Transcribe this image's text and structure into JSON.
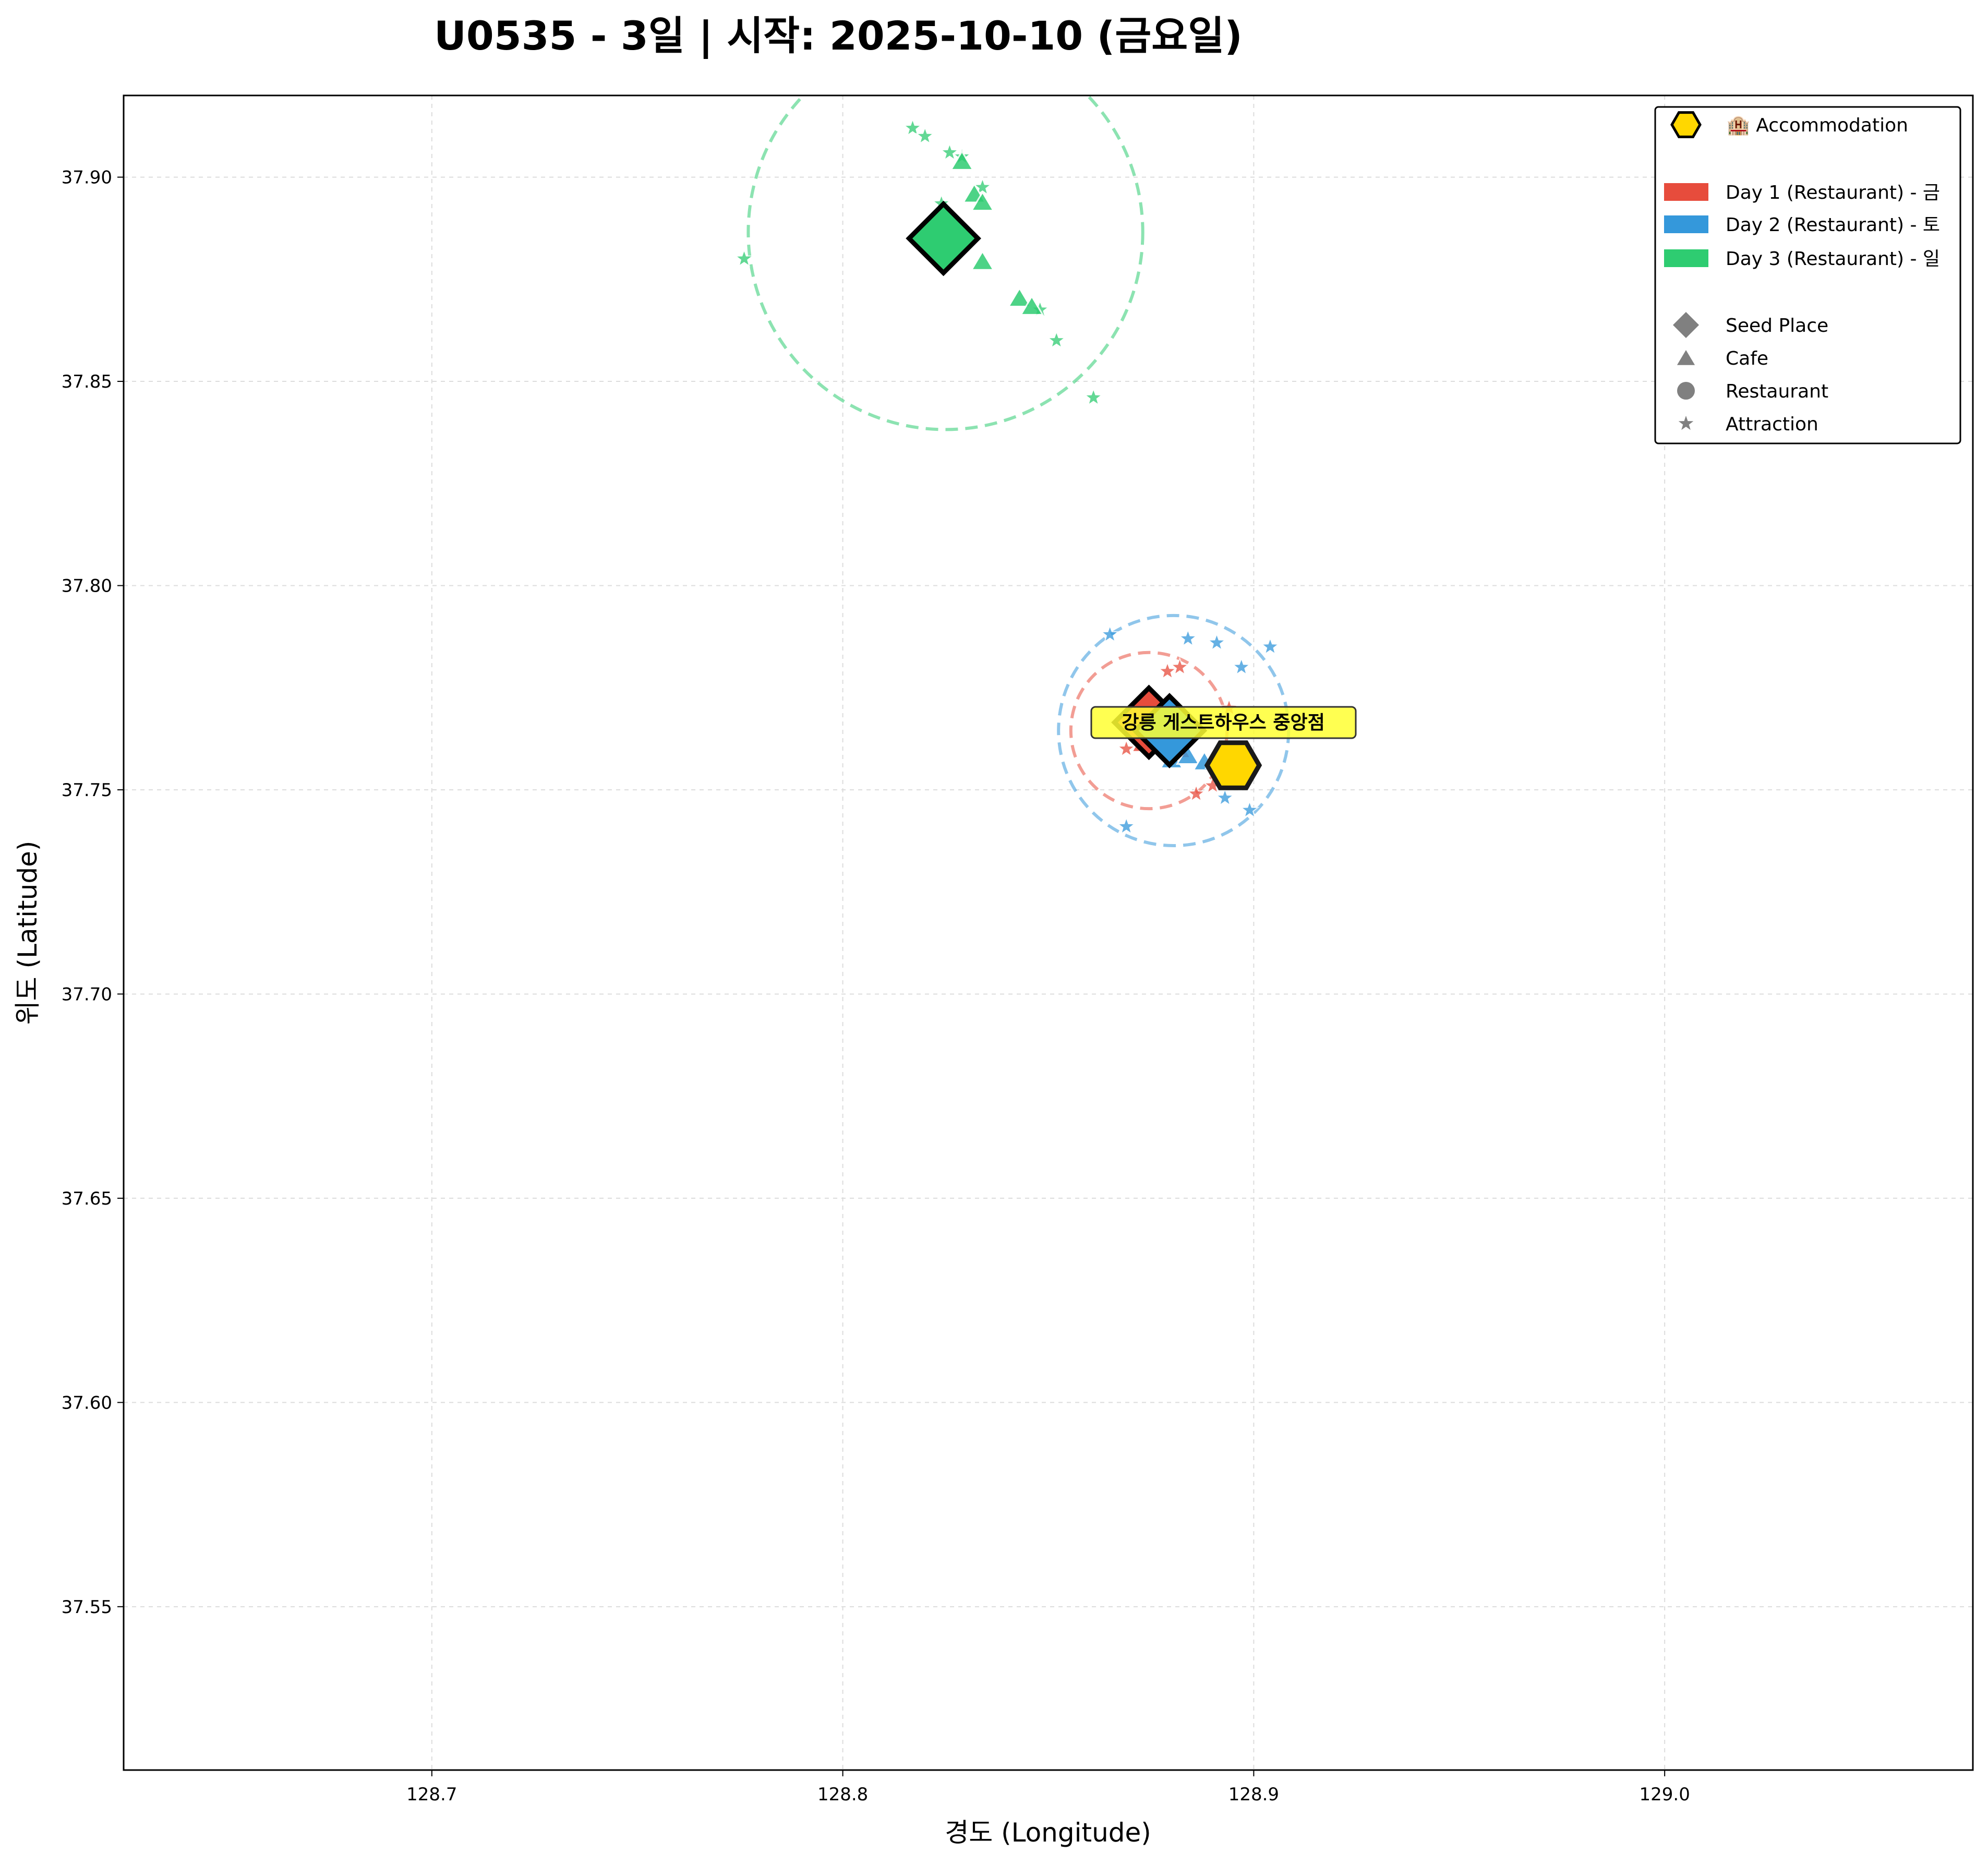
{
  "chart_data": {
    "type": "scatter",
    "title": "U0535 - 3일 | 시작: 2025-10-10 (금요일)",
    "xlabel": "경도 (Longitude)",
    "ylabel": "위도 (Latitude)",
    "xlim": [
      128.625,
      129.075
    ],
    "ylim": [
      37.51,
      37.92
    ],
    "xticks": [
      128.7,
      128.8,
      128.9,
      129.0
    ],
    "xtick_labels": [
      "128.7",
      "128.8",
      "128.9",
      "129.0"
    ],
    "yticks": [
      37.55,
      37.6,
      37.65,
      37.7,
      37.75,
      37.8,
      37.85,
      37.9
    ],
    "ytick_labels": [
      "37.55",
      "37.60",
      "37.65",
      "37.70",
      "37.75",
      "37.80",
      "37.85",
      "37.90"
    ],
    "grid": true,
    "legend_position": "top-right",
    "legend": [
      {
        "kind": "hexagon",
        "label": "🏨 Accommodation",
        "color": "#FFD700"
      },
      {
        "kind": "patch",
        "label": "Day 1 (Restaurant) - 금",
        "color": "#E74C3C"
      },
      {
        "kind": "patch",
        "label": "Day 2 (Restaurant) - 토",
        "color": "#3498DB"
      },
      {
        "kind": "patch",
        "label": "Day 3 (Restaurant) - 일",
        "color": "#2ECC71"
      },
      {
        "kind": "diamond",
        "label": "Seed Place",
        "color": "#808080"
      },
      {
        "kind": "triangle",
        "label": "Cafe",
        "color": "#808080"
      },
      {
        "kind": "circle",
        "label": "Restaurant",
        "color": "#808080"
      },
      {
        "kind": "star",
        "label": "Attraction",
        "color": "#808080"
      }
    ],
    "accommodation": {
      "name": "강릉 게스트하우스 중앙점",
      "lon": 128.895,
      "lat": 37.756,
      "color": "#FFD700"
    },
    "series": [
      {
        "name": "Day 1 (Restaurant) - 금",
        "color": "#E74C3C",
        "seed": {
          "lon": 128.8745,
          "lat": 37.7665
        },
        "radius_circle": {
          "lon": 128.8745,
          "lat": 37.7645,
          "radius": 0.019
        },
        "cafes": [
          {
            "lon": 128.873,
            "lat": 37.761
          },
          {
            "lon": 128.877,
            "lat": 37.762
          },
          {
            "lon": 128.882,
            "lat": 37.7595
          }
        ],
        "attractions": [
          {
            "lon": 128.869,
            "lat": 37.76
          },
          {
            "lon": 128.879,
            "lat": 37.779
          },
          {
            "lon": 128.882,
            "lat": 37.78
          },
          {
            "lon": 128.886,
            "lat": 37.749
          },
          {
            "lon": 128.89,
            "lat": 37.751
          },
          {
            "lon": 128.894,
            "lat": 37.77
          }
        ]
      },
      {
        "name": "Day 2 (Restaurant) - 토",
        "color": "#3498DB",
        "seed": {
          "lon": 128.8795,
          "lat": 37.7645
        },
        "radius_circle": {
          "lon": 128.8805,
          "lat": 37.7645,
          "radius": 0.028
        },
        "cafes": [
          {
            "lon": 128.88,
            "lat": 37.757
          },
          {
            "lon": 128.884,
            "lat": 37.758
          },
          {
            "lon": 128.888,
            "lat": 37.7565
          },
          {
            "lon": 128.891,
            "lat": 37.757
          }
        ],
        "attractions": [
          {
            "lon": 128.865,
            "lat": 37.788
          },
          {
            "lon": 128.884,
            "lat": 37.787
          },
          {
            "lon": 128.891,
            "lat": 37.786
          },
          {
            "lon": 128.897,
            "lat": 37.78
          },
          {
            "lon": 128.904,
            "lat": 37.785
          },
          {
            "lon": 128.869,
            "lat": 37.741
          },
          {
            "lon": 128.893,
            "lat": 37.748
          },
          {
            "lon": 128.899,
            "lat": 37.745
          }
        ]
      },
      {
        "name": "Day 3 (Restaurant) - 일",
        "color": "#2ECC71",
        "seed": {
          "lon": 128.8245,
          "lat": 37.885
        },
        "radius_circle": {
          "lon": 128.825,
          "lat": 37.8865,
          "radius": 0.048
        },
        "cafes": [
          {
            "lon": 128.829,
            "lat": 37.9035
          },
          {
            "lon": 128.832,
            "lat": 37.8955
          },
          {
            "lon": 128.834,
            "lat": 37.8935
          },
          {
            "lon": 128.834,
            "lat": 37.879
          },
          {
            "lon": 128.843,
            "lat": 37.87
          },
          {
            "lon": 128.846,
            "lat": 37.868
          }
        ],
        "attractions": [
          {
            "lon": 128.817,
            "lat": 37.912
          },
          {
            "lon": 128.82,
            "lat": 37.91
          },
          {
            "lon": 128.826,
            "lat": 37.906
          },
          {
            "lon": 128.829,
            "lat": 37.905
          },
          {
            "lon": 128.834,
            "lat": 37.8975
          },
          {
            "lon": 128.824,
            "lat": 37.8935
          },
          {
            "lon": 128.776,
            "lat": 37.88
          },
          {
            "lon": 128.848,
            "lat": 37.8675
          },
          {
            "lon": 128.852,
            "lat": 37.86
          },
          {
            "lon": 128.861,
            "lat": 37.846
          }
        ]
      }
    ]
  }
}
